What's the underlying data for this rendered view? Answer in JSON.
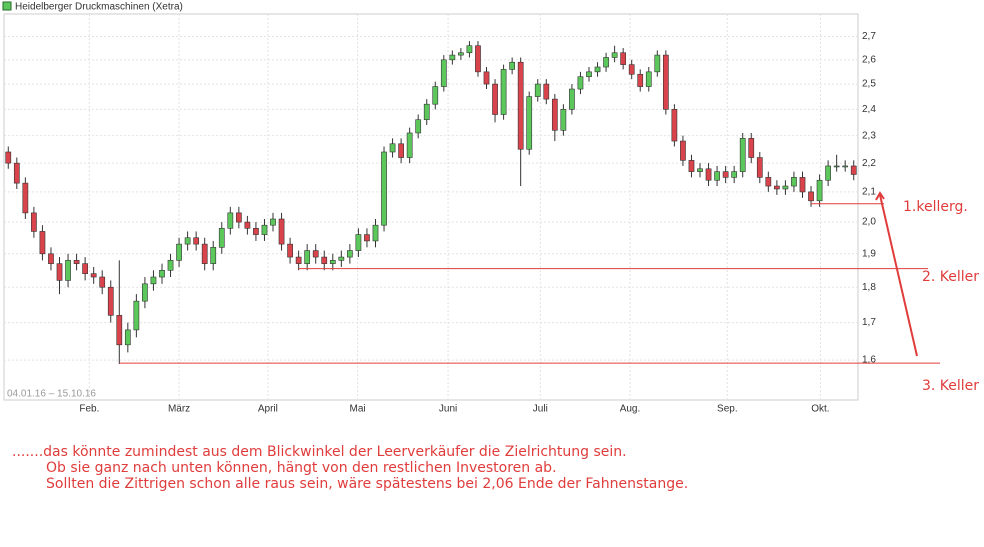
{
  "chart_data": {
    "type": "candlestick",
    "title": "Heidelberger Druckmaschinen (Xetra)",
    "date_range": "04.01.16 – 15.10.16",
    "up_color": "#5cc85c",
    "down_color": "#d9434c",
    "open": [
      2.24,
      2.2,
      2.13,
      2.03,
      1.97,
      1.9,
      1.87,
      1.82,
      1.88,
      1.87,
      1.84,
      1.83,
      1.8,
      1.72,
      1.64,
      1.68,
      1.76,
      1.81,
      1.83,
      1.85,
      1.88,
      1.93,
      1.95,
      1.93,
      1.87,
      1.92,
      1.98,
      2.03,
      2.0,
      1.98,
      1.96,
      1.99,
      2.01,
      1.93,
      1.89,
      1.87,
      1.91,
      1.89,
      1.87,
      1.88,
      1.89,
      1.91,
      1.96,
      1.94,
      1.99,
      2.24,
      2.27,
      2.22,
      2.31,
      2.36,
      2.42,
      2.49,
      2.6,
      2.62,
      2.63,
      2.66,
      2.55,
      2.5,
      2.38,
      2.56,
      2.59,
      2.25,
      2.45,
      2.5,
      2.44,
      2.32,
      2.4,
      2.48,
      2.53,
      2.55,
      2.57,
      2.61,
      2.63,
      2.58,
      2.54,
      2.49,
      2.55,
      2.62,
      2.4,
      2.28,
      2.21,
      2.17,
      2.18,
      2.14,
      2.17,
      2.15,
      2.17,
      2.29,
      2.22,
      2.15,
      2.12,
      2.11,
      2.12,
      2.15,
      2.1,
      2.07,
      2.14,
      2.19,
      2.19,
      2.19
    ],
    "high": [
      2.26,
      2.22,
      2.15,
      2.05,
      1.99,
      1.92,
      1.89,
      1.9,
      1.9,
      1.89,
      1.86,
      1.85,
      1.82,
      1.88,
      1.7,
      1.78,
      1.83,
      1.85,
      1.87,
      1.9,
      1.95,
      1.97,
      1.97,
      1.95,
      1.94,
      2.0,
      2.05,
      2.05,
      2.02,
      2.0,
      2.01,
      2.03,
      2.03,
      1.95,
      1.91,
      1.93,
      1.93,
      1.91,
      1.9,
      1.91,
      1.93,
      1.98,
      1.98,
      2.01,
      2.26,
      2.29,
      2.29,
      2.33,
      2.38,
      2.44,
      2.51,
      2.62,
      2.64,
      2.65,
      2.68,
      2.68,
      2.57,
      2.52,
      2.58,
      2.61,
      2.61,
      2.47,
      2.52,
      2.52,
      2.46,
      2.42,
      2.5,
      2.55,
      2.57,
      2.59,
      2.63,
      2.66,
      2.65,
      2.6,
      2.56,
      2.57,
      2.64,
      2.64,
      2.42,
      2.3,
      2.23,
      2.2,
      2.2,
      2.19,
      2.19,
      2.19,
      2.31,
      2.31,
      2.24,
      2.17,
      2.14,
      2.14,
      2.17,
      2.17,
      2.12,
      2.16,
      2.21,
      2.23,
      2.21,
      2.21
    ],
    "low": [
      2.18,
      2.11,
      2.01,
      1.95,
      1.88,
      1.85,
      1.78,
      1.8,
      1.85,
      1.82,
      1.81,
      1.78,
      1.7,
      1.59,
      1.62,
      1.66,
      1.74,
      1.79,
      1.81,
      1.83,
      1.86,
      1.91,
      1.91,
      1.85,
      1.85,
      1.9,
      1.96,
      1.98,
      1.96,
      1.94,
      1.94,
      1.97,
      1.91,
      1.87,
      1.85,
      1.85,
      1.87,
      1.85,
      1.85,
      1.86,
      1.87,
      1.89,
      1.92,
      1.92,
      1.97,
      2.22,
      2.2,
      2.2,
      2.29,
      2.34,
      2.4,
      2.47,
      2.58,
      2.6,
      2.61,
      2.53,
      2.48,
      2.35,
      2.36,
      2.54,
      2.12,
      2.23,
      2.43,
      2.42,
      2.28,
      2.3,
      2.38,
      2.46,
      2.51,
      2.53,
      2.55,
      2.59,
      2.56,
      2.52,
      2.47,
      2.47,
      2.53,
      2.38,
      2.26,
      2.19,
      2.15,
      2.15,
      2.12,
      2.12,
      2.13,
      2.13,
      2.15,
      2.2,
      2.13,
      2.1,
      2.09,
      2.09,
      2.1,
      2.08,
      2.05,
      2.05,
      2.12,
      2.17,
      2.17,
      2.14
    ],
    "close": [
      2.2,
      2.13,
      2.03,
      1.97,
      1.9,
      1.87,
      1.82,
      1.88,
      1.87,
      1.84,
      1.83,
      1.8,
      1.72,
      1.64,
      1.68,
      1.76,
      1.81,
      1.83,
      1.85,
      1.88,
      1.93,
      1.95,
      1.93,
      1.87,
      1.92,
      1.98,
      2.03,
      2.0,
      1.98,
      1.96,
      1.99,
      2.01,
      1.93,
      1.89,
      1.87,
      1.91,
      1.89,
      1.87,
      1.88,
      1.89,
      1.91,
      1.96,
      1.94,
      1.99,
      2.24,
      2.27,
      2.22,
      2.31,
      2.36,
      2.42,
      2.49,
      2.6,
      2.62,
      2.63,
      2.66,
      2.55,
      2.5,
      2.38,
      2.56,
      2.59,
      2.25,
      2.45,
      2.5,
      2.44,
      2.32,
      2.4,
      2.48,
      2.53,
      2.55,
      2.57,
      2.61,
      2.63,
      2.58,
      2.54,
      2.49,
      2.55,
      2.62,
      2.4,
      2.28,
      2.21,
      2.17,
      2.18,
      2.14,
      2.17,
      2.15,
      2.17,
      2.29,
      2.22,
      2.15,
      2.12,
      2.11,
      2.12,
      2.15,
      2.1,
      2.07,
      2.14,
      2.19,
      2.19,
      2.19,
      2.16
    ],
    "xlim": [
      0,
      100
    ],
    "xticks": [
      {
        "value": 10,
        "label": "Feb."
      },
      {
        "value": 20.5,
        "label": "März"
      },
      {
        "value": 30.9,
        "label": "April"
      },
      {
        "value": 41.4,
        "label": "Mai"
      },
      {
        "value": 52,
        "label": "Juni"
      },
      {
        "value": 62.8,
        "label": "Juli"
      },
      {
        "value": 73.3,
        "label": "Aug."
      },
      {
        "value": 84.7,
        "label": "Sep."
      },
      {
        "value": 95.6,
        "label": "Okt."
      }
    ],
    "ylim": [
      1.5,
      2.8
    ],
    "yticks": [
      {
        "value": 1.6,
        "label": "1,6"
      },
      {
        "value": 1.7,
        "label": "1,7"
      },
      {
        "value": 1.8,
        "label": "1,8"
      },
      {
        "value": 1.9,
        "label": "1,9"
      },
      {
        "value": 2.0,
        "label": "2,0"
      },
      {
        "value": 2.1,
        "label": "2,1"
      },
      {
        "value": 2.2,
        "label": "2,2"
      },
      {
        "value": 2.3,
        "label": "2,3"
      },
      {
        "value": 2.4,
        "label": "2,4"
      },
      {
        "value": 2.5,
        "label": "2,5"
      },
      {
        "value": 2.6,
        "label": "2,6"
      },
      {
        "value": 2.7,
        "label": "2,7"
      }
    ],
    "log_scale": true,
    "grid": true,
    "level_color": "#e03c3c",
    "levels": [
      {
        "value": 2.06,
        "from": 94,
        "label": "1.kellerg."
      },
      {
        "value": 1.855,
        "from": 34,
        "label": "2. Keller"
      },
      {
        "value": 1.592,
        "from": 13,
        "label": "3. Keller"
      }
    ],
    "comment": [
      ".......das könnte zumindest aus dem Blickwinkel der Leerverkäufer die Zielrichtung sein.",
      "Ob sie ganz nach unten können, hängt von den restlichen Investoren ab.",
      "Sollten die Zittrigen schon alle raus sein, wäre spätestens bei 2,06 Ende der Fahnenstange."
    ]
  }
}
